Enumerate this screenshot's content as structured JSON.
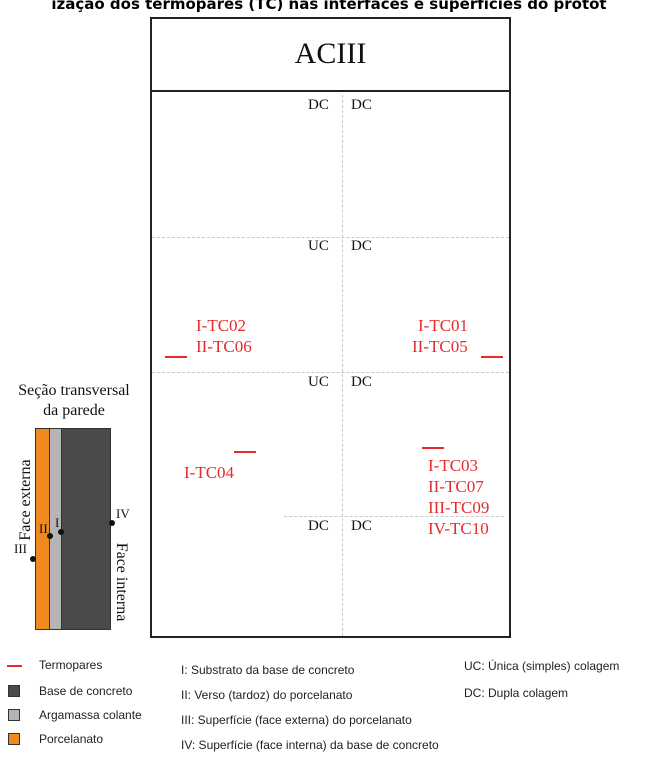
{
  "caption": "ização dos termopares (TC) nas interfaces e superfícies do protót",
  "panel": {
    "title": "ACIII",
    "zones": {
      "top_left": "DC",
      "top_right": "DC",
      "r2_left": "UC",
      "r2_right": "DC",
      "r3_left": "UC",
      "r3_right": "DC",
      "r4_left": "DC",
      "r4_right": "DC"
    },
    "thermocouples": {
      "group_left_top": [
        "I-TC02",
        "II-TC06"
      ],
      "group_right_top": [
        "I-TC01",
        "II-TC05"
      ],
      "group_left_bottom": [
        "I-TC04"
      ],
      "group_right_bottom": [
        "I-TC03",
        "II-TC07",
        "III-TC09",
        "IV-TC10"
      ]
    }
  },
  "section": {
    "title_line1": "Seção transversal",
    "title_line2": "da parede",
    "face_external": "Face externa",
    "face_internal": "Face interna",
    "labels": {
      "I": "I",
      "II": "II",
      "III": "III",
      "IV": "IV"
    }
  },
  "legend": {
    "materials": [
      {
        "label": "Termopares",
        "kind": "line",
        "color": "#e52b2b"
      },
      {
        "label": "Base de concreto",
        "kind": "box",
        "color": "#4a4a4a"
      },
      {
        "label": "Argamassa colante",
        "kind": "box",
        "color": "#b5b5b5"
      },
      {
        "label": "Porcelanato",
        "kind": "box",
        "color": "#f08a1e"
      }
    ],
    "positions": [
      "I: Substrato da base de concreto",
      "II: Verso (tardoz) do porcelanato",
      "III: Superfície (face externa) do porcelanato",
      "IV: Superfície (face interna) da base de concreto"
    ],
    "bonding": [
      "UC: Única (simples) colagem",
      "DC: Dupla colagem"
    ]
  }
}
